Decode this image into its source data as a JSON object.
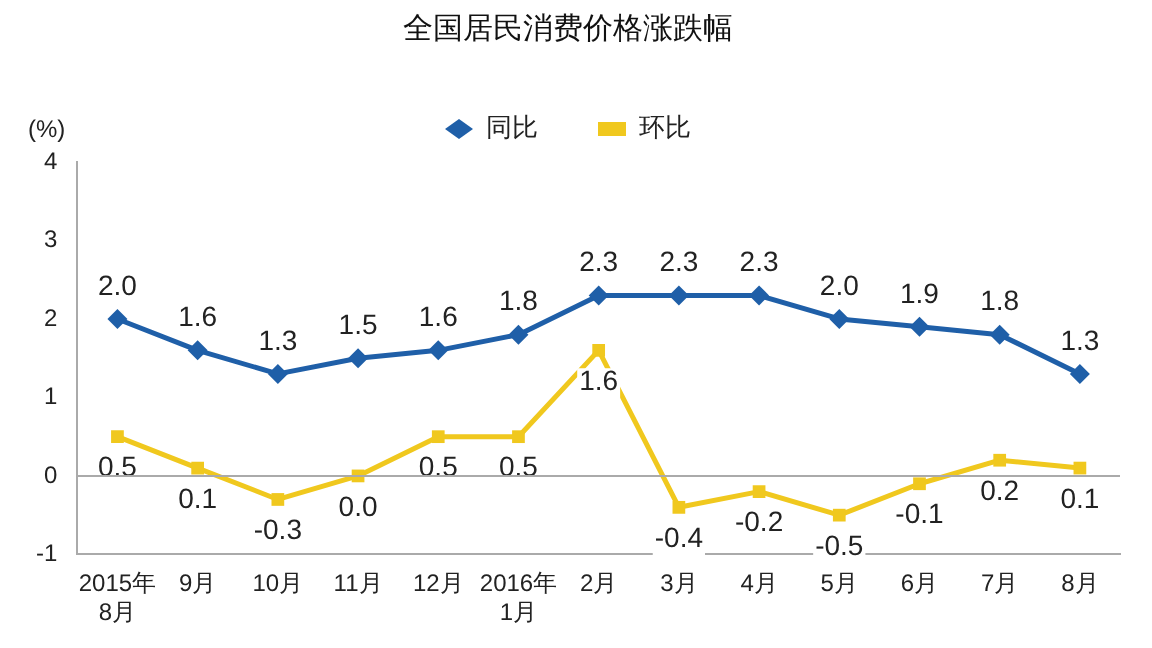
{
  "chart_data": {
    "type": "line",
    "title": "全国居民消费价格涨跌幅",
    "ylabel": "(%)",
    "categories": [
      "2015年\n8月",
      "9月",
      "10月",
      "11月",
      "12月",
      "2016年\n1月",
      "2月",
      "3月",
      "4月",
      "5月",
      "6月",
      "7月",
      "8月"
    ],
    "series": [
      {
        "name": "同比",
        "color": "#1f5fa8",
        "marker": "diamond",
        "values": [
          2.0,
          1.6,
          1.3,
          1.5,
          1.6,
          1.8,
          2.3,
          2.3,
          2.3,
          2.0,
          1.9,
          1.8,
          1.3
        ],
        "value_labels": [
          "2.0",
          "1.6",
          "1.3",
          "1.5",
          "1.6",
          "1.8",
          "2.3",
          "2.3",
          "2.3",
          "2.0",
          "1.9",
          "1.8",
          "1.3"
        ]
      },
      {
        "name": "环比",
        "color": "#f0c81e",
        "marker": "square",
        "values": [
          0.5,
          0.1,
          -0.3,
          0.0,
          0.5,
          0.5,
          1.6,
          -0.4,
          -0.2,
          -0.5,
          -0.1,
          0.2,
          0.1
        ],
        "value_labels": [
          "0.5",
          "0.1",
          "-0.3",
          "0.0",
          "0.5",
          "0.5",
          "1.6",
          "-0.4",
          "-0.2",
          "-0.5",
          "-0.1",
          "0.2",
          "0.1"
        ]
      }
    ],
    "ylim": [
      -1,
      4
    ],
    "yticks": [
      -1,
      0,
      1,
      2,
      3,
      4
    ],
    "ref_lines": [
      {
        "axis": "y",
        "value": 0,
        "color": "#aaaaaa"
      }
    ],
    "legend": "top"
  }
}
